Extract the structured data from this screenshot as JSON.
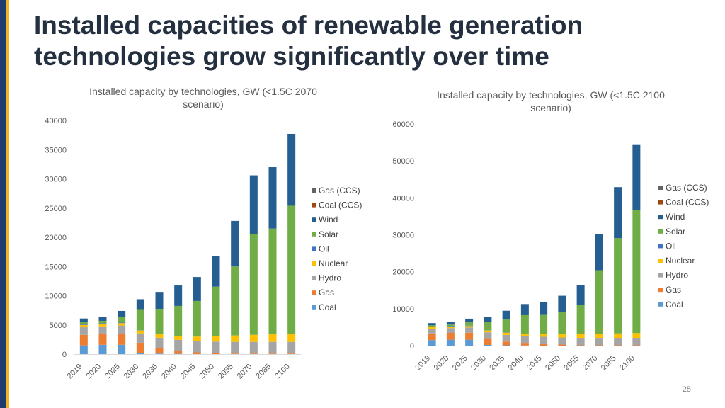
{
  "slide": {
    "title": "Installed capacities of renewable generation technologies grow significantly over time",
    "page_number": "25",
    "colors": {
      "stripe_dark": "#1f3c6e",
      "stripe_accent": "#f0b323",
      "title": "#243040"
    }
  },
  "chart_data": [
    {
      "type": "stacked-bar",
      "title": "Installed capacity by technologies, GW (<1.5C 2070 scenario)",
      "xlabel": "",
      "ylabel": "GW",
      "ylim": [
        0,
        40000
      ],
      "yticks": [
        0,
        5000,
        10000,
        15000,
        20000,
        25000,
        30000,
        35000,
        40000
      ],
      "categories": [
        "2019",
        "2020",
        "2025",
        "2030",
        "2035",
        "2040",
        "2045",
        "2050",
        "2055",
        "2070",
        "2085",
        "2100"
      ],
      "legend_position": "right",
      "series": [
        {
          "name": "Coal",
          "color": "#5b9bd5",
          "values": [
            1500,
            1600,
            1600,
            150,
            100,
            50,
            0,
            0,
            0,
            0,
            0,
            0
          ]
        },
        {
          "name": "Gas",
          "color": "#ed7d31",
          "values": [
            1800,
            1850,
            1900,
            1800,
            900,
            500,
            300,
            150,
            100,
            100,
            100,
            100
          ]
        },
        {
          "name": "Hydro",
          "color": "#a5a5a5",
          "values": [
            1300,
            1300,
            1400,
            1600,
            1800,
            1900,
            1900,
            2000,
            2000,
            2000,
            2000,
            2000
          ]
        },
        {
          "name": "Nuclear",
          "color": "#ffc000",
          "values": [
            400,
            400,
            400,
            500,
            600,
            700,
            800,
            1000,
            1100,
            1200,
            1300,
            1300
          ]
        },
        {
          "name": "Oil",
          "color": "#4472c4",
          "values": [
            150,
            150,
            100,
            50,
            50,
            0,
            0,
            0,
            0,
            0,
            0,
            0
          ]
        },
        {
          "name": "Solar",
          "color": "#70ad47",
          "values": [
            350,
            400,
            900,
            3600,
            4300,
            5100,
            6100,
            8400,
            11800,
            17300,
            18100,
            22000
          ]
        },
        {
          "name": "Wind",
          "color": "#255e91",
          "values": [
            600,
            700,
            1100,
            1700,
            2900,
            3500,
            4100,
            5300,
            7800,
            10000,
            10500,
            12300
          ]
        },
        {
          "name": "Coal (CCS)",
          "color": "#9e480e",
          "values": [
            0,
            0,
            0,
            0,
            0,
            0,
            0,
            0,
            0,
            0,
            0,
            0
          ]
        },
        {
          "name": "Gas (CCS)",
          "color": "#636363",
          "values": [
            0,
            0,
            0,
            0,
            0,
            0,
            0,
            0,
            0,
            0,
            0,
            0
          ]
        }
      ]
    },
    {
      "type": "stacked-bar",
      "title": "Installed capacity by technologies, GW (<1.5C 2100 scenario)",
      "xlabel": "",
      "ylabel": "GW",
      "ylim": [
        0,
        60000
      ],
      "yticks": [
        0,
        10000,
        20000,
        30000,
        40000,
        50000,
        60000
      ],
      "categories": [
        "2019",
        "2020",
        "2025",
        "2030",
        "2035",
        "2040",
        "2045",
        "2050",
        "2055",
        "2070",
        "2085",
        "2100"
      ],
      "legend_position": "right",
      "series": [
        {
          "name": "Coal",
          "color": "#5b9bd5",
          "values": [
            1500,
            1600,
            1600,
            200,
            100,
            50,
            0,
            0,
            0,
            0,
            0,
            0
          ]
        },
        {
          "name": "Gas",
          "color": "#ed7d31",
          "values": [
            1800,
            1850,
            1900,
            1800,
            1000,
            700,
            500,
            300,
            100,
            100,
            100,
            100
          ]
        },
        {
          "name": "Hydro",
          "color": "#a5a5a5",
          "values": [
            1300,
            1300,
            1400,
            1600,
            1800,
            1800,
            1900,
            1900,
            2000,
            2000,
            2000,
            2000
          ]
        },
        {
          "name": "Nuclear",
          "color": "#ffc000",
          "values": [
            400,
            400,
            400,
            500,
            600,
            700,
            800,
            900,
            1000,
            1100,
            1200,
            1300
          ]
        },
        {
          "name": "Oil",
          "color": "#4472c4",
          "values": [
            150,
            150,
            100,
            50,
            50,
            0,
            0,
            0,
            0,
            0,
            0,
            0
          ]
        },
        {
          "name": "Solar",
          "color": "#70ad47",
          "values": [
            350,
            400,
            900,
            2200,
            3500,
            5000,
            5100,
            6000,
            8000,
            17200,
            25800,
            33300
          ]
        },
        {
          "name": "Wind",
          "color": "#255e91",
          "values": [
            600,
            700,
            1000,
            1500,
            2400,
            3000,
            3400,
            4400,
            5200,
            9800,
            13800,
            17800
          ]
        },
        {
          "name": "Coal (CCS)",
          "color": "#9e480e",
          "values": [
            0,
            0,
            0,
            0,
            0,
            0,
            0,
            0,
            0,
            0,
            0,
            0
          ]
        },
        {
          "name": "Gas (CCS)",
          "color": "#636363",
          "values": [
            0,
            0,
            0,
            0,
            0,
            0,
            0,
            0,
            0,
            0,
            0,
            0
          ]
        }
      ]
    }
  ]
}
